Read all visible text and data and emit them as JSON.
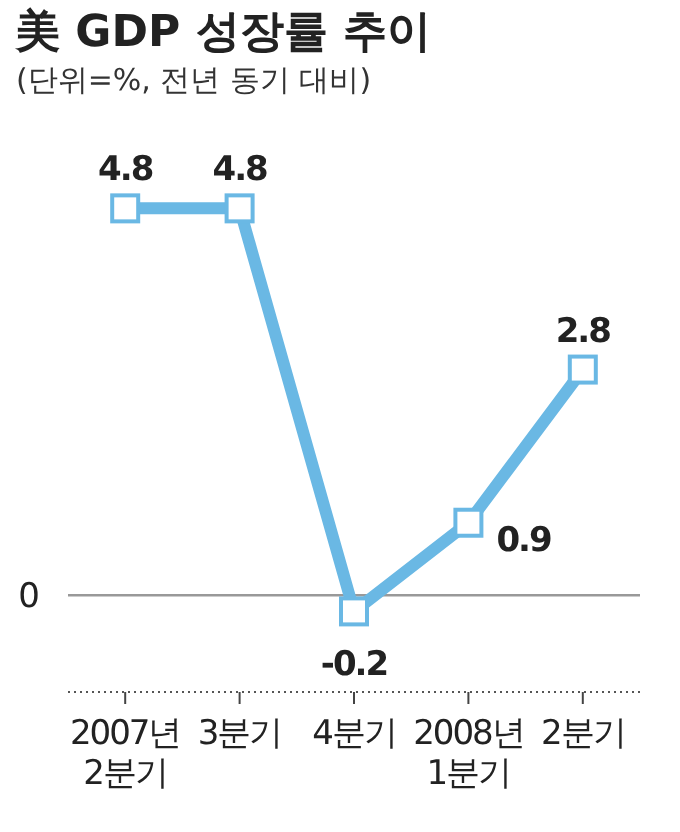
{
  "chart_data": {
    "type": "line",
    "title": "美 GDP 성장률 추이",
    "subtitle": "(단위=%, 전년 동기 대비)",
    "categories": [
      "2007년\n2분기",
      "3분기",
      "4분기",
      "2008년\n1분기",
      "2분기"
    ],
    "series": [
      {
        "color": "#6ab8e4",
        "values": [
          4.8,
          4.8,
          -0.2,
          0.9,
          2.8
        ]
      }
    ],
    "ref_lines": [
      {
        "axis": "y",
        "value": 0,
        "label": "0",
        "color": "#999999"
      }
    ],
    "marker": "square",
    "line_style": "solid",
    "data_labels": true
  }
}
